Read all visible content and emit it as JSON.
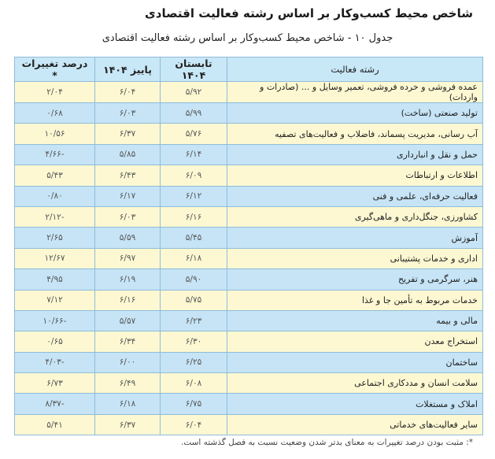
{
  "title": "شاخص محیط کسب‌وکار بر اساس رشته فعالیت اقتصادی",
  "caption": "جدول ۱۰ - شاخص محیط کسب‌وکار بر اساس رشته فعالیت اقتصادی",
  "columns": [
    "رشته فعالیت",
    "تابستان ۱۴۰۴",
    "پاییز ۱۴۰۴",
    "درصد تغییرات *"
  ],
  "rows": [
    {
      "activity": "عمده فروشی و خرده فروشی، تعمیر وسایل و ... (صادرات و واردات)",
      "summer": "۵/۹۲",
      "autumn": "۶/۰۴",
      "change": "۲/۰۴"
    },
    {
      "activity": "تولید صنعتی (ساخت)",
      "summer": "۵/۹۹",
      "autumn": "۶/۰۳",
      "change": "۰/۶۸"
    },
    {
      "activity": "آب رسانی، مدیریت پسماند، فاضلاب و فعالیت‌های تصفیه",
      "summer": "۵/۷۶",
      "autumn": "۶/۳۷",
      "change": "۱۰/۵۶"
    },
    {
      "activity": "حمل و نقل و انبارداری",
      "summer": "۶/۱۴",
      "autumn": "۵/۸۵",
      "change": "-۴/۶۶"
    },
    {
      "activity": "اطلاعات و ارتباطات",
      "summer": "۶/۰۹",
      "autumn": "۶/۴۳",
      "change": "۵/۴۳"
    },
    {
      "activity": "فعالیت حرفه‌ای، علمی و فنی",
      "summer": "۶/۱۲",
      "autumn": "۶/۱۷",
      "change": "۰/۸۰"
    },
    {
      "activity": "کشاورزی، جنگل‌داری و ماهی‌گیری",
      "summer": "۶/۱۶",
      "autumn": "۶/۰۳",
      "change": "-۲/۱۲"
    },
    {
      "activity": "آموزش",
      "summer": "۵/۴۵",
      "autumn": "۵/۵۹",
      "change": "۲/۶۵"
    },
    {
      "activity": "اداری و خدمات پشتیبانی",
      "summer": "۶/۱۸",
      "autumn": "۶/۹۷",
      "change": "۱۲/۶۷"
    },
    {
      "activity": "هنر، سرگرمی و تفریح",
      "summer": "۵/۹۰",
      "autumn": "۶/۱۹",
      "change": "۴/۹۵"
    },
    {
      "activity": "خدمات مربوط به تأمین جا و غذا",
      "summer": "۵/۷۵",
      "autumn": "۶/۱۶",
      "change": "۷/۱۲"
    },
    {
      "activity": "مالی و بیمه",
      "summer": "۶/۲۳",
      "autumn": "۵/۵۷",
      "change": "-۱۰/۶۶"
    },
    {
      "activity": "استخراج معدن",
      "summer": "۶/۳۰",
      "autumn": "۶/۳۴",
      "change": "۰/۶۵"
    },
    {
      "activity": "ساختمان",
      "summer": "۶/۲۵",
      "autumn": "۶/۰۰",
      "change": "-۴/۰۳"
    },
    {
      "activity": "سلامت انسان و مددکاری اجتماعی",
      "summer": "۶/۰۸",
      "autumn": "۶/۴۹",
      "change": "۶/۷۳"
    },
    {
      "activity": "املاک و مستغلات",
      "summer": "۶/۷۵",
      "autumn": "۶/۱۸",
      "change": "-۸/۳۷"
    },
    {
      "activity": "سایر فعالیت‌های خدماتی",
      "summer": "۶/۰۴",
      "autumn": "۶/۳۷",
      "change": "۵/۴۱"
    }
  ],
  "footnote": "*: مثبت بودن درصد تغییرات به معنای بدتر شدن وضعیت نسبت به فصل گذشته است.",
  "colors": {
    "header": "#c8e7f7",
    "row_yellow": "#fdf8d2",
    "row_blue": "#c6e4f6",
    "border": "#8fbcd8"
  }
}
